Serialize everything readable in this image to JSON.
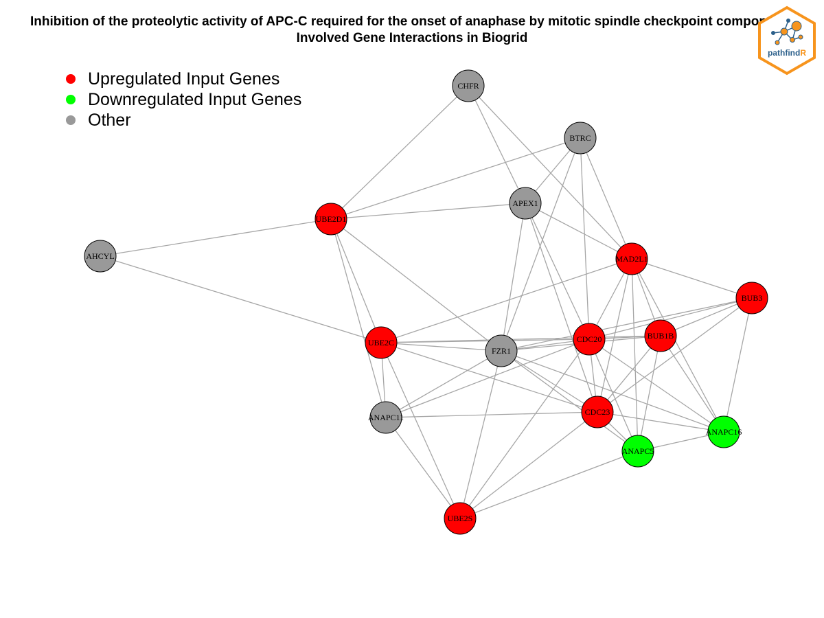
{
  "title_line1": "Inhibition of the proteolytic activity of APC-C required for the onset of anaphase by mitotic spindle checkpoint components",
  "title_line2": "Involved Gene Interactions in Biogrid",
  "legend": [
    {
      "label": "Upregulated Input Genes",
      "color": "#ff0000"
    },
    {
      "label": "Downregulated Input Genes",
      "color": "#00ff00"
    },
    {
      "label": "Other",
      "color": "#999999"
    }
  ],
  "logo_text": {
    "main": "pathfind",
    "accent": "R"
  },
  "colors": {
    "up": "#ff0000",
    "down": "#00ff00",
    "other": "#999999",
    "edge": "#a6a6a6",
    "logo_orange": "#f7941d",
    "logo_blue": "#2b5f8a"
  },
  "nodes": [
    {
      "id": "CHFR",
      "type": "other"
    },
    {
      "id": "BTRC",
      "type": "other"
    },
    {
      "id": "APEX1",
      "type": "other"
    },
    {
      "id": "UBE2D1",
      "type": "up"
    },
    {
      "id": "AHCYL",
      "type": "other"
    },
    {
      "id": "MAD2L1",
      "type": "up"
    },
    {
      "id": "BUB3",
      "type": "up"
    },
    {
      "id": "UBE2C",
      "type": "up"
    },
    {
      "id": "FZR1",
      "type": "other"
    },
    {
      "id": "CDC20",
      "type": "up"
    },
    {
      "id": "BUB1B",
      "type": "up"
    },
    {
      "id": "ANAPC11",
      "type": "other"
    },
    {
      "id": "CDC23",
      "type": "up"
    },
    {
      "id": "ANAPC16",
      "type": "down"
    },
    {
      "id": "ANAPC5",
      "type": "down"
    },
    {
      "id": "UBE2S",
      "type": "up"
    }
  ],
  "edges": [
    [
      "CHFR",
      "UBE2D1"
    ],
    [
      "CHFR",
      "APEX1"
    ],
    [
      "CHFR",
      "MAD2L1"
    ],
    [
      "BTRC",
      "UBE2D1"
    ],
    [
      "BTRC",
      "APEX1"
    ],
    [
      "BTRC",
      "MAD2L1"
    ],
    [
      "BTRC",
      "CDC20"
    ],
    [
      "BTRC",
      "FZR1"
    ],
    [
      "UBE2D1",
      "APEX1"
    ],
    [
      "UBE2D1",
      "AHCYL"
    ],
    [
      "UBE2D1",
      "FZR1"
    ],
    [
      "UBE2D1",
      "ANAPC11"
    ],
    [
      "UBE2D1",
      "UBE2C"
    ],
    [
      "APEX1",
      "MAD2L1"
    ],
    [
      "APEX1",
      "CDC20"
    ],
    [
      "APEX1",
      "FZR1"
    ],
    [
      "APEX1",
      "CDC23"
    ],
    [
      "AHCYL",
      "UBE2C"
    ],
    [
      "MAD2L1",
      "BUB3"
    ],
    [
      "MAD2L1",
      "BUB1B"
    ],
    [
      "MAD2L1",
      "CDC20"
    ],
    [
      "MAD2L1",
      "UBE2C"
    ],
    [
      "MAD2L1",
      "CDC23"
    ],
    [
      "MAD2L1",
      "ANAPC5"
    ],
    [
      "MAD2L1",
      "ANAPC16"
    ],
    [
      "BUB3",
      "BUB1B"
    ],
    [
      "BUB3",
      "CDC20"
    ],
    [
      "BUB3",
      "CDC23"
    ],
    [
      "BUB3",
      "ANAPC16"
    ],
    [
      "BUB3",
      "FZR1"
    ],
    [
      "UBE2C",
      "FZR1"
    ],
    [
      "UBE2C",
      "CDC20"
    ],
    [
      "UBE2C",
      "BUB1B"
    ],
    [
      "UBE2C",
      "ANAPC11"
    ],
    [
      "UBE2C",
      "UBE2S"
    ],
    [
      "UBE2C",
      "CDC23"
    ],
    [
      "FZR1",
      "CDC20"
    ],
    [
      "FZR1",
      "BUB1B"
    ],
    [
      "FZR1",
      "CDC23"
    ],
    [
      "FZR1",
      "ANAPC5"
    ],
    [
      "FZR1",
      "ANAPC16"
    ],
    [
      "FZR1",
      "ANAPC11"
    ],
    [
      "FZR1",
      "UBE2S"
    ],
    [
      "CDC20",
      "BUB1B"
    ],
    [
      "CDC20",
      "CDC23"
    ],
    [
      "CDC20",
      "ANAPC5"
    ],
    [
      "CDC20",
      "ANAPC16"
    ],
    [
      "CDC20",
      "ANAPC11"
    ],
    [
      "CDC20",
      "UBE2S"
    ],
    [
      "BUB1B",
      "CDC23"
    ],
    [
      "BUB1B",
      "ANAPC16"
    ],
    [
      "BUB1B",
      "ANAPC5"
    ],
    [
      "ANAPC11",
      "CDC23"
    ],
    [
      "ANAPC11",
      "UBE2S"
    ],
    [
      "CDC23",
      "ANAPC5"
    ],
    [
      "CDC23",
      "UBE2S"
    ],
    [
      "CDC23",
      "ANAPC16"
    ],
    [
      "ANAPC5",
      "ANAPC16"
    ],
    [
      "ANAPC5",
      "UBE2S"
    ]
  ]
}
